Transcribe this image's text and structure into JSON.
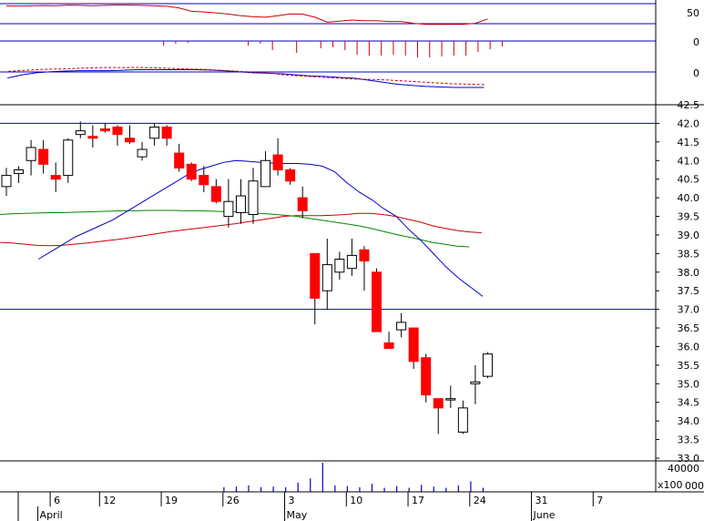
{
  "chart_data": {
    "type": "candlestick",
    "colors": {
      "up": "#ffffff",
      "down": "#ff0000",
      "ma_short": "#0000cc",
      "ma_mid": "#008800",
      "ma_long": "#cc0000",
      "reference": "#0000cc",
      "dashed": "#cc0000"
    },
    "price_axis": {
      "min": 33.0,
      "max": 42.5,
      "ticks": [
        "42.5",
        "42.0",
        "41.5",
        "41.0",
        "40.5",
        "40.0",
        "39.5",
        "39.0",
        "38.5",
        "38.0",
        "37.5",
        "37.0",
        "36.5",
        "36.0",
        "35.5",
        "35.0",
        "34.5",
        "34.0",
        "33.5",
        "33.0"
      ]
    },
    "reference_lines": [
      42.0,
      37.0
    ],
    "x_axis": {
      "day_labels": [
        {
          "label": "6",
          "index": 2
        },
        {
          "label": "12",
          "index": 6
        },
        {
          "label": "19",
          "index": 11
        },
        {
          "label": "26",
          "index": 16
        },
        {
          "label": "3",
          "index": 21
        },
        {
          "label": "10",
          "index": 26
        },
        {
          "label": "17",
          "index": 31
        },
        {
          "label": "24",
          "index": 36
        },
        {
          "label": "31",
          "index": 41
        },
        {
          "label": "7",
          "index": 46
        }
      ],
      "month_labels": [
        {
          "label": "April",
          "index": 1
        },
        {
          "label": "May",
          "index": 21
        },
        {
          "label": "June",
          "index": 41
        }
      ]
    },
    "candles": [
      {
        "o": 40.3,
        "h": 40.8,
        "l": 40.05,
        "c": 40.6
      },
      {
        "o": 40.65,
        "h": 40.85,
        "l": 40.4,
        "c": 40.75
      },
      {
        "o": 41.0,
        "h": 41.55,
        "l": 40.6,
        "c": 41.35
      },
      {
        "o": 41.3,
        "h": 41.55,
        "l": 40.65,
        "c": 40.9
      },
      {
        "o": 40.6,
        "h": 40.95,
        "l": 40.15,
        "c": 40.5
      },
      {
        "o": 40.6,
        "h": 41.6,
        "l": 40.4,
        "c": 41.55
      },
      {
        "o": 41.7,
        "h": 42.05,
        "l": 41.6,
        "c": 41.8
      },
      {
        "o": 41.65,
        "h": 41.95,
        "l": 41.35,
        "c": 41.6
      },
      {
        "o": 41.85,
        "h": 42.0,
        "l": 41.75,
        "c": 41.8
      },
      {
        "o": 41.9,
        "h": 41.95,
        "l": 41.4,
        "c": 41.7
      },
      {
        "o": 41.6,
        "h": 41.95,
        "l": 41.45,
        "c": 41.5
      },
      {
        "o": 41.1,
        "h": 41.5,
        "l": 41.0,
        "c": 41.3
      },
      {
        "o": 41.6,
        "h": 42.0,
        "l": 41.4,
        "c": 41.9
      },
      {
        "o": 41.9,
        "h": 41.95,
        "l": 41.4,
        "c": 41.6
      },
      {
        "o": 41.2,
        "h": 41.45,
        "l": 40.7,
        "c": 40.8
      },
      {
        "o": 40.9,
        "h": 40.95,
        "l": 40.45,
        "c": 40.5
      },
      {
        "o": 40.6,
        "h": 40.85,
        "l": 40.15,
        "c": 40.35
      },
      {
        "o": 40.3,
        "h": 40.5,
        "l": 39.85,
        "c": 39.9
      },
      {
        "o": 39.5,
        "h": 40.5,
        "l": 39.2,
        "c": 39.9
      },
      {
        "o": 39.6,
        "h": 40.5,
        "l": 39.3,
        "c": 40.05
      },
      {
        "o": 39.55,
        "h": 40.8,
        "l": 39.3,
        "c": 40.45
      },
      {
        "o": 40.3,
        "h": 41.25,
        "l": 40.3,
        "c": 41.0
      },
      {
        "o": 41.15,
        "h": 41.6,
        "l": 40.6,
        "c": 40.75
      },
      {
        "o": 40.75,
        "h": 40.8,
        "l": 40.35,
        "c": 40.45
      },
      {
        "o": 40.0,
        "h": 40.3,
        "l": 39.45,
        "c": 39.65
      },
      {
        "o": 38.5,
        "h": 38.5,
        "l": 36.6,
        "c": 37.3
      },
      {
        "o": 37.5,
        "h": 38.9,
        "l": 37.0,
        "c": 38.2
      },
      {
        "o": 38.0,
        "h": 38.55,
        "l": 37.8,
        "c": 38.35
      },
      {
        "o": 38.1,
        "h": 38.9,
        "l": 37.9,
        "c": 38.45
      },
      {
        "o": 38.6,
        "h": 38.7,
        "l": 37.5,
        "c": 38.3
      },
      {
        "o": 38.0,
        "h": 38.1,
        "l": 36.4,
        "c": 36.4
      },
      {
        "o": 36.1,
        "h": 36.4,
        "l": 35.95,
        "c": 35.95
      },
      {
        "o": 36.45,
        "h": 36.9,
        "l": 36.25,
        "c": 36.65
      },
      {
        "o": 36.5,
        "h": 36.5,
        "l": 35.4,
        "c": 35.6
      },
      {
        "o": 35.7,
        "h": 35.8,
        "l": 34.5,
        "c": 34.7
      },
      {
        "o": 34.6,
        "h": 34.6,
        "l": 33.65,
        "c": 34.35
      },
      {
        "o": 34.6,
        "h": 34.95,
        "l": 34.35,
        "c": 34.6
      },
      {
        "o": 33.7,
        "h": 34.55,
        "l": 33.65,
        "c": 34.35
      },
      {
        "o": 35.0,
        "h": 35.5,
        "l": 34.45,
        "c": 35.05
      },
      {
        "o": 35.2,
        "h": 35.85,
        "l": 35.15,
        "c": 35.8
      }
    ],
    "ma_short": [
      38.35,
      38.55,
      38.75,
      38.95,
      39.1,
      39.25,
      39.4,
      39.6,
      39.8,
      40.0,
      40.2,
      40.4,
      40.6,
      40.75,
      40.85,
      40.95,
      41.0,
      40.98,
      40.95,
      40.93,
      40.92,
      40.92,
      40.9,
      40.85,
      40.7,
      40.4,
      40.15,
      39.95,
      39.7,
      39.5,
      39.15,
      38.85,
      38.5,
      38.15,
      37.85,
      37.6,
      37.35
    ],
    "ma_mid": [
      39.55,
      39.57,
      39.58,
      39.59,
      39.6,
      39.6,
      39.61,
      39.62,
      39.63,
      39.64,
      39.65,
      39.65,
      39.66,
      39.66,
      39.66,
      39.65,
      39.65,
      39.64,
      39.63,
      39.62,
      39.6,
      39.58,
      39.56,
      39.53,
      39.5,
      39.45,
      39.4,
      39.35,
      39.3,
      39.25,
      39.18,
      39.1,
      39.02,
      38.95,
      38.88,
      38.8,
      38.75,
      38.7,
      38.68
    ],
    "ma_long": [
      38.8,
      38.78,
      38.75,
      38.72,
      38.71,
      38.72,
      38.75,
      38.78,
      38.82,
      38.86,
      38.9,
      38.95,
      39.0,
      39.05,
      39.1,
      39.14,
      39.18,
      39.22,
      39.26,
      39.3,
      39.35,
      39.4,
      39.45,
      39.5,
      39.52,
      39.52,
      39.52,
      39.53,
      39.55,
      39.58,
      39.58,
      39.55,
      39.5,
      39.42,
      39.35,
      39.25,
      39.18,
      39.12,
      39.08,
      39.06
    ],
    "volume": {
      "axis_labels": [
        "40000",
        "000",
        "x100"
      ],
      "max": 50000,
      "values": [
        0,
        0,
        0,
        0,
        0,
        0,
        0,
        0,
        0,
        0,
        0,
        0,
        0,
        0,
        0,
        0,
        0,
        0,
        8000,
        9000,
        11000,
        8000,
        9000,
        8000,
        16000,
        23000,
        50000,
        11000,
        10000,
        8000,
        14000,
        7000,
        10000,
        7000,
        12000,
        9000,
        7000,
        11000,
        18000,
        7000
      ]
    },
    "indicator_panels": [
      {
        "axis_label": "50",
        "line": [
          0.1,
          0.11,
          0.1,
          0.09,
          0.1,
          0.07,
          0.08,
          0.1,
          0.08,
          0.06,
          0.07,
          0.08,
          0.1,
          0.12,
          0.2,
          0.35,
          0.38,
          0.42,
          0.48,
          0.55,
          0.6,
          0.62,
          0.55,
          0.47,
          0.48,
          0.62,
          0.85,
          0.8,
          0.75,
          0.78,
          0.78,
          0.82,
          0.82,
          0.9,
          0.95,
          0.95,
          0.95,
          0.95,
          0.9,
          0.7
        ]
      },
      {
        "axis_label": "0",
        "bars": [
          0,
          0,
          0,
          0,
          0,
          0,
          0,
          0,
          0,
          0,
          0,
          0,
          0,
          -0.25,
          -0.15,
          -0.1,
          0,
          0,
          0,
          0,
          -0.25,
          -0.15,
          -0.5,
          0,
          -0.65,
          0,
          -0.4,
          -0.35,
          -0.5,
          -0.75,
          -0.8,
          -0.8,
          -0.75,
          -0.8,
          -0.9,
          -0.9,
          -0.85,
          -0.8,
          -0.8,
          -0.6,
          -0.45,
          -0.3
        ]
      },
      {
        "axis_label": "0",
        "line_solid": [
          0.55,
          0.4,
          0.3,
          0.25,
          0.22,
          0.2,
          0.2,
          0.2,
          0.18,
          0.15,
          0.15,
          0.15,
          0.15,
          0.15,
          0.17,
          0.2,
          0.25,
          0.3,
          0.32,
          0.35,
          0.4,
          0.45,
          0.48,
          0.52,
          0.56,
          0.65,
          0.75,
          0.85,
          0.9,
          0.95,
          0.98,
          1.0,
          1.0,
          1.0
        ],
        "line_dashed": [
          0.3,
          0.25,
          0.2,
          0.18,
          0.15,
          0.12,
          0.1,
          0.1,
          0.1,
          0.12,
          0.15,
          0.18,
          0.2,
          0.25,
          0.3,
          0.35,
          0.4,
          0.5,
          0.55,
          0.6,
          0.65,
          0.7,
          0.72,
          0.75,
          0.8,
          0.85,
          0.9,
          0.95,
          0.97,
          1.0
        ]
      }
    ]
  }
}
